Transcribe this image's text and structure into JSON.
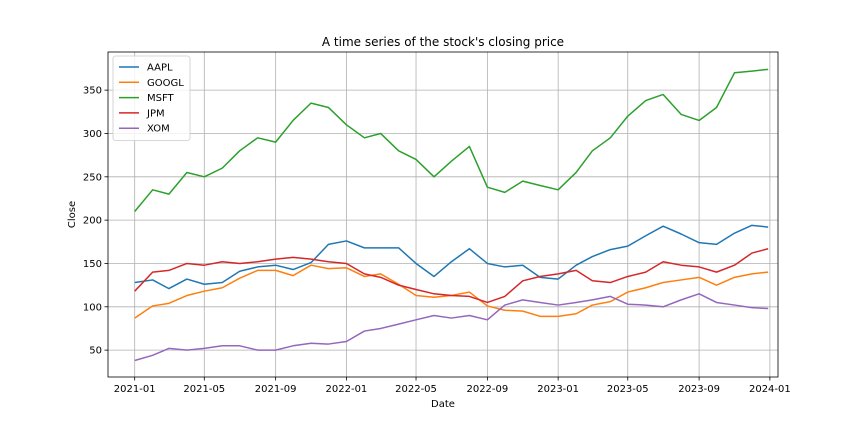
{
  "chart_data": {
    "type": "line",
    "title": "A time series of the stock's closing price",
    "xlabel": "Date",
    "ylabel": "Close",
    "x_range": [
      "2020-11-16",
      "2024-01-15"
    ],
    "ylim": [
      19,
      394
    ],
    "x_ticks": [
      "2021-01",
      "2021-05",
      "2021-09",
      "2022-01",
      "2022-05",
      "2022-09",
      "2023-01",
      "2023-05",
      "2023-09",
      "2024-01"
    ],
    "y_ticks": [
      50,
      100,
      150,
      200,
      250,
      300,
      350
    ],
    "grid": true,
    "legend_position": "top-left",
    "series": [
      {
        "name": "AAPL",
        "color": "#1f77b4",
        "points": [
          [
            "2021-01-01",
            128
          ],
          [
            "2021-02-01",
            131
          ],
          [
            "2021-03-01",
            121
          ],
          [
            "2021-04-01",
            132
          ],
          [
            "2021-05-01",
            126
          ],
          [
            "2021-06-01",
            128
          ],
          [
            "2021-07-01",
            141
          ],
          [
            "2021-08-01",
            146
          ],
          [
            "2021-09-01",
            148
          ],
          [
            "2021-10-01",
            143
          ],
          [
            "2021-11-01",
            151
          ],
          [
            "2021-12-01",
            172
          ],
          [
            "2022-01-01",
            176
          ],
          [
            "2022-02-01",
            168
          ],
          [
            "2022-03-01",
            168
          ],
          [
            "2022-04-01",
            168
          ],
          [
            "2022-05-01",
            150
          ],
          [
            "2022-06-01",
            135
          ],
          [
            "2022-07-01",
            152
          ],
          [
            "2022-08-01",
            167
          ],
          [
            "2022-09-01",
            150
          ],
          [
            "2022-10-01",
            146
          ],
          [
            "2022-11-01",
            148
          ],
          [
            "2022-12-01",
            134
          ],
          [
            "2023-01-01",
            132
          ],
          [
            "2023-02-01",
            148
          ],
          [
            "2023-03-01",
            158
          ],
          [
            "2023-04-01",
            166
          ],
          [
            "2023-05-01",
            170
          ],
          [
            "2023-06-01",
            182
          ],
          [
            "2023-07-01",
            193
          ],
          [
            "2023-08-01",
            184
          ],
          [
            "2023-09-01",
            174
          ],
          [
            "2023-10-01",
            172
          ],
          [
            "2023-11-01",
            185
          ],
          [
            "2023-12-01",
            194
          ],
          [
            "2023-12-29",
            192
          ]
        ]
      },
      {
        "name": "GOOGL",
        "color": "#ff7f0e",
        "points": [
          [
            "2021-01-01",
            87
          ],
          [
            "2021-02-01",
            101
          ],
          [
            "2021-03-01",
            104
          ],
          [
            "2021-04-01",
            113
          ],
          [
            "2021-05-01",
            118
          ],
          [
            "2021-06-01",
            122
          ],
          [
            "2021-07-01",
            133
          ],
          [
            "2021-08-01",
            142
          ],
          [
            "2021-09-01",
            142
          ],
          [
            "2021-10-01",
            136
          ],
          [
            "2021-11-01",
            148
          ],
          [
            "2021-12-01",
            144
          ],
          [
            "2022-01-01",
            145
          ],
          [
            "2022-02-01",
            135
          ],
          [
            "2022-03-01",
            138
          ],
          [
            "2022-04-01",
            126
          ],
          [
            "2022-05-01",
            113
          ],
          [
            "2022-06-01",
            111
          ],
          [
            "2022-07-01",
            113
          ],
          [
            "2022-08-01",
            117
          ],
          [
            "2022-09-01",
            101
          ],
          [
            "2022-10-01",
            96
          ],
          [
            "2022-11-01",
            95
          ],
          [
            "2022-12-01",
            89
          ],
          [
            "2023-01-01",
            89
          ],
          [
            "2023-02-01",
            92
          ],
          [
            "2023-03-01",
            102
          ],
          [
            "2023-04-01",
            106
          ],
          [
            "2023-05-01",
            117
          ],
          [
            "2023-06-01",
            122
          ],
          [
            "2023-07-01",
            128
          ],
          [
            "2023-08-01",
            131
          ],
          [
            "2023-09-01",
            134
          ],
          [
            "2023-10-01",
            125
          ],
          [
            "2023-11-01",
            134
          ],
          [
            "2023-12-01",
            138
          ],
          [
            "2023-12-29",
            140
          ]
        ]
      },
      {
        "name": "MSFT",
        "color": "#2ca02c",
        "points": [
          [
            "2021-01-01",
            210
          ],
          [
            "2021-02-01",
            235
          ],
          [
            "2021-03-01",
            230
          ],
          [
            "2021-04-01",
            255
          ],
          [
            "2021-05-01",
            250
          ],
          [
            "2021-06-01",
            260
          ],
          [
            "2021-07-01",
            280
          ],
          [
            "2021-08-01",
            295
          ],
          [
            "2021-09-01",
            290
          ],
          [
            "2021-10-01",
            315
          ],
          [
            "2021-11-01",
            335
          ],
          [
            "2021-12-01",
            330
          ],
          [
            "2022-01-01",
            310
          ],
          [
            "2022-02-01",
            295
          ],
          [
            "2022-03-01",
            300
          ],
          [
            "2022-04-01",
            280
          ],
          [
            "2022-05-01",
            270
          ],
          [
            "2022-06-01",
            250
          ],
          [
            "2022-07-01",
            268
          ],
          [
            "2022-08-01",
            285
          ],
          [
            "2022-09-01",
            238
          ],
          [
            "2022-10-01",
            232
          ],
          [
            "2022-11-01",
            245
          ],
          [
            "2022-12-01",
            240
          ],
          [
            "2023-01-01",
            235
          ],
          [
            "2023-02-01",
            255
          ],
          [
            "2023-03-01",
            280
          ],
          [
            "2023-04-01",
            295
          ],
          [
            "2023-05-01",
            320
          ],
          [
            "2023-06-01",
            338
          ],
          [
            "2023-07-01",
            345
          ],
          [
            "2023-08-01",
            322
          ],
          [
            "2023-09-01",
            315
          ],
          [
            "2023-10-01",
            330
          ],
          [
            "2023-11-01",
            370
          ],
          [
            "2023-12-01",
            372
          ],
          [
            "2023-12-29",
            374
          ]
        ]
      },
      {
        "name": "JPM",
        "color": "#d62728",
        "points": [
          [
            "2021-01-01",
            118
          ],
          [
            "2021-02-01",
            140
          ],
          [
            "2021-03-01",
            142
          ],
          [
            "2021-04-01",
            150
          ],
          [
            "2021-05-01",
            148
          ],
          [
            "2021-06-01",
            152
          ],
          [
            "2021-07-01",
            150
          ],
          [
            "2021-08-01",
            152
          ],
          [
            "2021-09-01",
            155
          ],
          [
            "2021-10-01",
            157
          ],
          [
            "2021-11-01",
            155
          ],
          [
            "2021-12-01",
            152
          ],
          [
            "2022-01-01",
            150
          ],
          [
            "2022-02-01",
            138
          ],
          [
            "2022-03-01",
            134
          ],
          [
            "2022-04-01",
            125
          ],
          [
            "2022-05-01",
            120
          ],
          [
            "2022-06-01",
            115
          ],
          [
            "2022-07-01",
            113
          ],
          [
            "2022-08-01",
            112
          ],
          [
            "2022-09-01",
            105
          ],
          [
            "2022-10-01",
            112
          ],
          [
            "2022-11-01",
            130
          ],
          [
            "2022-12-01",
            135
          ],
          [
            "2023-01-01",
            138
          ],
          [
            "2023-02-01",
            142
          ],
          [
            "2023-03-01",
            130
          ],
          [
            "2023-04-01",
            128
          ],
          [
            "2023-05-01",
            135
          ],
          [
            "2023-06-01",
            140
          ],
          [
            "2023-07-01",
            152
          ],
          [
            "2023-08-01",
            148
          ],
          [
            "2023-09-01",
            146
          ],
          [
            "2023-10-01",
            140
          ],
          [
            "2023-11-01",
            148
          ],
          [
            "2023-12-01",
            162
          ],
          [
            "2023-12-29",
            167
          ]
        ]
      },
      {
        "name": "XOM",
        "color": "#9467bd",
        "points": [
          [
            "2021-01-01",
            38
          ],
          [
            "2021-02-01",
            44
          ],
          [
            "2021-03-01",
            52
          ],
          [
            "2021-04-01",
            50
          ],
          [
            "2021-05-01",
            52
          ],
          [
            "2021-06-01",
            55
          ],
          [
            "2021-07-01",
            55
          ],
          [
            "2021-08-01",
            50
          ],
          [
            "2021-09-01",
            50
          ],
          [
            "2021-10-01",
            55
          ],
          [
            "2021-11-01",
            58
          ],
          [
            "2021-12-01",
            57
          ],
          [
            "2022-01-01",
            60
          ],
          [
            "2022-02-01",
            72
          ],
          [
            "2022-03-01",
            75
          ],
          [
            "2022-04-01",
            80
          ],
          [
            "2022-05-01",
            85
          ],
          [
            "2022-06-01",
            90
          ],
          [
            "2022-07-01",
            87
          ],
          [
            "2022-08-01",
            90
          ],
          [
            "2022-09-01",
            85
          ],
          [
            "2022-10-01",
            102
          ],
          [
            "2022-11-01",
            108
          ],
          [
            "2022-12-01",
            105
          ],
          [
            "2023-01-01",
            102
          ],
          [
            "2023-02-01",
            105
          ],
          [
            "2023-03-01",
            108
          ],
          [
            "2023-04-01",
            112
          ],
          [
            "2023-05-01",
            103
          ],
          [
            "2023-06-01",
            102
          ],
          [
            "2023-07-01",
            100
          ],
          [
            "2023-08-01",
            108
          ],
          [
            "2023-09-01",
            115
          ],
          [
            "2023-10-01",
            105
          ],
          [
            "2023-11-01",
            102
          ],
          [
            "2023-12-01",
            99
          ],
          [
            "2023-12-29",
            98
          ]
        ]
      }
    ]
  }
}
